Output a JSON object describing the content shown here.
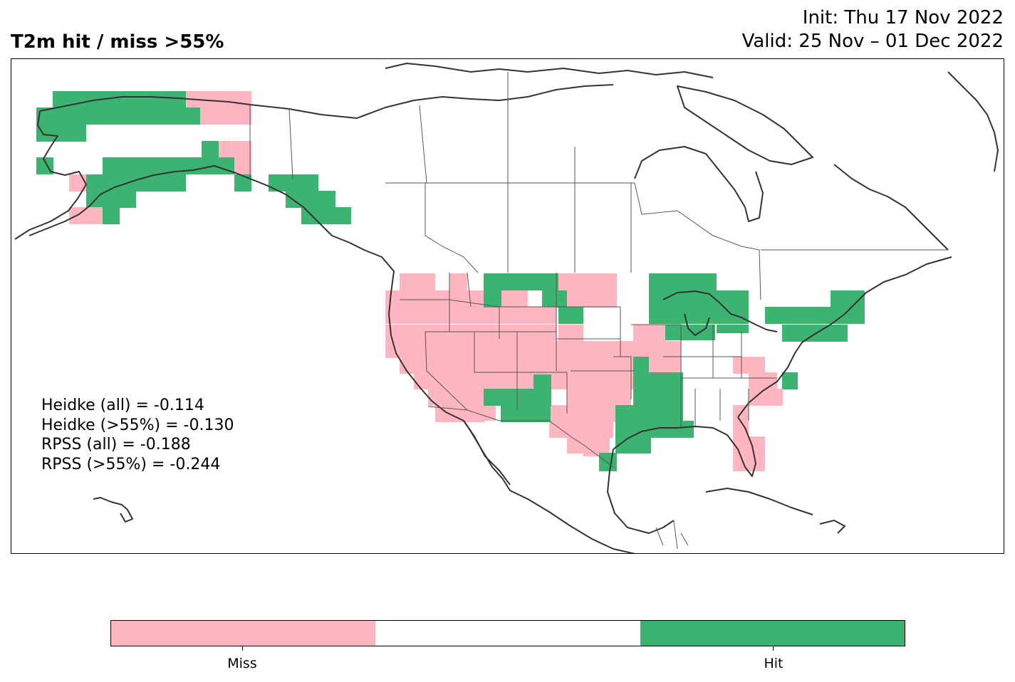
{
  "header": {
    "title": "T2m hit / miss  >55%",
    "init": "Init: Thu 17 Nov 2022",
    "valid": "Valid: 25 Nov – 01 Dec 2022"
  },
  "stats": [
    "Heidke (all) = -0.114",
    "Heidke (>55%) = -0.130",
    "RPSS (all) = -0.188",
    "RPSS (>55%) = -0.244"
  ],
  "colorbar": {
    "categories": [
      "Miss",
      "",
      "Hit"
    ],
    "colors": [
      "#ffb6c1",
      "#ffffff",
      "#3cb371"
    ],
    "tick_labels": [
      "Miss",
      "Hit"
    ]
  },
  "legend_colors": {
    "miss": "#ffb6c1",
    "hit": "#3cb371",
    "coastline": "#333333",
    "border": "#555555"
  }
}
